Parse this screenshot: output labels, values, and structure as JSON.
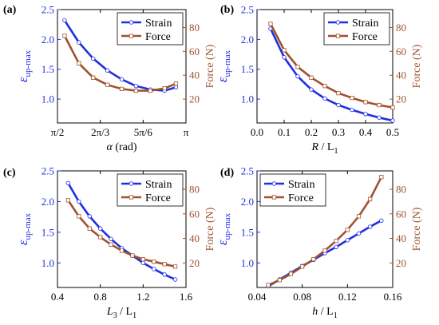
{
  "colors": {
    "strain": "#1f2fe0",
    "force": "#a0522d",
    "frame": "#000000"
  },
  "chart_data": [
    {
      "panel": "(a)",
      "type": "line",
      "x_unit": "rad",
      "x_label_var": "α",
      "x_label_suffix": " (rad)",
      "xlim": [
        1.5708,
        3.1416
      ],
      "xticks": [
        1.5708,
        2.0944,
        2.618,
        3.1416
      ],
      "xtick_labels": [
        "π/2",
        "2π/3",
        "5π/6",
        "π"
      ],
      "ylim_left": [
        0.6,
        2.5
      ],
      "yticks_left": [
        1.0,
        1.5,
        2.0,
        2.5
      ],
      "ytick_labels_left": [
        "1.0",
        "1.5",
        "2.0",
        "2.5"
      ],
      "ylim_right": [
        0,
        95
      ],
      "yticks_right": [
        20,
        40,
        60,
        80
      ],
      "ytick_labels_right": [
        "20",
        "40",
        "60",
        "80"
      ],
      "ylabel_left_main": "ε",
      "ylabel_left_sub": "up-max",
      "ylabel_right": "Force (N)",
      "legend": {
        "position": "top-right",
        "entries": [
          "Strain",
          "Force"
        ]
      },
      "series": [
        {
          "name": "Strain",
          "axis": "left",
          "x": [
            1.6581,
            1.8326,
            2.0071,
            2.1817,
            2.3562,
            2.5307,
            2.7053,
            2.8798,
            3.0194
          ],
          "y": [
            2.32,
            1.95,
            1.68,
            1.48,
            1.33,
            1.22,
            1.16,
            1.14,
            1.2
          ]
        },
        {
          "name": "Force",
          "axis": "right",
          "x": [
            1.6581,
            1.8326,
            2.0071,
            2.1817,
            2.3562,
            2.5307,
            2.7053,
            2.8798,
            3.0194
          ],
          "y": [
            73,
            50,
            38,
            32,
            28.5,
            27,
            27,
            29,
            33
          ]
        }
      ]
    },
    {
      "panel": "(b)",
      "type": "line",
      "x_label_var": "R",
      "x_label_suffix": " / L",
      "x_label_sub": "1",
      "xlim": [
        0.0,
        0.5
      ],
      "xticks": [
        0.0,
        0.1,
        0.2,
        0.3,
        0.4,
        0.5
      ],
      "xtick_labels": [
        "0.0",
        "0.1",
        "0.2",
        "0.3",
        "0.4",
        "0.5"
      ],
      "ylim_left": [
        0.6,
        2.5
      ],
      "yticks_left": [
        1.0,
        1.5,
        2.0,
        2.5
      ],
      "ytick_labels_left": [
        "1.0",
        "1.5",
        "2.0",
        "2.5"
      ],
      "ylim_right": [
        0,
        95
      ],
      "yticks_right": [
        20,
        40,
        60,
        80
      ],
      "ytick_labels_right": [
        "20",
        "40",
        "60",
        "80"
      ],
      "ylabel_left_main": "ε",
      "ylabel_left_sub": "up-max",
      "ylabel_right": "Force (N)",
      "legend": {
        "position": "top-right",
        "entries": [
          "Strain",
          "Force"
        ]
      },
      "series": [
        {
          "name": "Strain",
          "axis": "left",
          "x": [
            0.05,
            0.1,
            0.15,
            0.2,
            0.25,
            0.3,
            0.35,
            0.4,
            0.45,
            0.5
          ],
          "y": [
            2.18,
            1.7,
            1.38,
            1.16,
            1.01,
            0.9,
            0.82,
            0.75,
            0.69,
            0.64
          ]
        },
        {
          "name": "Force",
          "axis": "right",
          "x": [
            0.05,
            0.1,
            0.15,
            0.2,
            0.25,
            0.3,
            0.35,
            0.4,
            0.45,
            0.5
          ],
          "y": [
            83,
            61,
            47,
            38,
            31,
            25,
            21,
            17.5,
            15,
            13
          ]
        }
      ]
    },
    {
      "panel": "(c)",
      "type": "line",
      "x_label_var": "L",
      "x_label_var_sub": "3",
      "x_label_suffix": " / L",
      "x_label_sub": "1",
      "xlim": [
        0.4,
        1.6
      ],
      "xticks": [
        0.4,
        0.8,
        1.2,
        1.6
      ],
      "xtick_labels": [
        "0.4",
        "0.8",
        "1.2",
        "1.6"
      ],
      "ylim_left": [
        0.6,
        2.5
      ],
      "yticks_left": [
        1.0,
        1.5,
        2.0,
        2.5
      ],
      "ytick_labels_left": [
        "1.0",
        "1.5",
        "2.0",
        "2.5"
      ],
      "ylim_right": [
        0,
        95
      ],
      "yticks_right": [
        20,
        40,
        60,
        80
      ],
      "ytick_labels_right": [
        "20",
        "40",
        "60",
        "80"
      ],
      "ylabel_left_main": "ε",
      "ylabel_left_sub": "up-max",
      "ylabel_right": "Force (N)",
      "legend": {
        "position": "top-right",
        "entries": [
          "Strain",
          "Force"
        ]
      },
      "series": [
        {
          "name": "Strain",
          "axis": "left",
          "x": [
            0.5,
            0.6,
            0.7,
            0.8,
            0.9,
            1.0,
            1.1,
            1.2,
            1.3,
            1.4,
            1.5
          ],
          "y": [
            2.3,
            2.0,
            1.76,
            1.56,
            1.39,
            1.24,
            1.12,
            1.0,
            0.9,
            0.81,
            0.73
          ]
        },
        {
          "name": "Force",
          "axis": "right",
          "x": [
            0.5,
            0.6,
            0.7,
            0.8,
            0.9,
            1.0,
            1.1,
            1.2,
            1.3,
            1.4,
            1.5
          ],
          "y": [
            71,
            58,
            48,
            41,
            35,
            30,
            26,
            23,
            21,
            19,
            17
          ]
        }
      ]
    },
    {
      "panel": "(d)",
      "type": "line",
      "x_label_var": "h",
      "x_label_suffix": " / L",
      "x_label_sub": "1",
      "xlim": [
        0.04,
        0.16
      ],
      "xticks": [
        0.04,
        0.08,
        0.12,
        0.16
      ],
      "xtick_labels": [
        "0.04",
        "0.08",
        "0.12",
        "0.16"
      ],
      "ylim_left": [
        0.6,
        2.5
      ],
      "yticks_left": [
        1.0,
        1.5,
        2.0,
        2.5
      ],
      "ytick_labels_left": [
        "1.0",
        "1.5",
        "2.0",
        "2.5"
      ],
      "ylim_right": [
        0,
        95
      ],
      "yticks_right": [
        20,
        40,
        60,
        80
      ],
      "ytick_labels_right": [
        "20",
        "40",
        "60",
        "80"
      ],
      "ylabel_left_main": "ε",
      "ylabel_left_sub": "up-max",
      "ylabel_right": "Force (N)",
      "legend": {
        "position": "top-left",
        "entries": [
          "Strain",
          "Force"
        ]
      },
      "series": [
        {
          "name": "Strain",
          "axis": "left",
          "x": [
            0.05,
            0.06,
            0.07,
            0.08,
            0.09,
            0.1,
            0.11,
            0.12,
            0.13,
            0.14,
            0.15
          ],
          "y": [
            0.62,
            0.73,
            0.84,
            0.95,
            1.05,
            1.16,
            1.26,
            1.37,
            1.48,
            1.59,
            1.69
          ]
        },
        {
          "name": "Force",
          "axis": "right",
          "x": [
            0.05,
            0.06,
            0.07,
            0.08,
            0.09,
            0.1,
            0.11,
            0.12,
            0.13,
            0.14,
            0.15
          ],
          "y": [
            2,
            6,
            11,
            17,
            23,
            30,
            38,
            47,
            58,
            72,
            90
          ]
        }
      ]
    }
  ]
}
